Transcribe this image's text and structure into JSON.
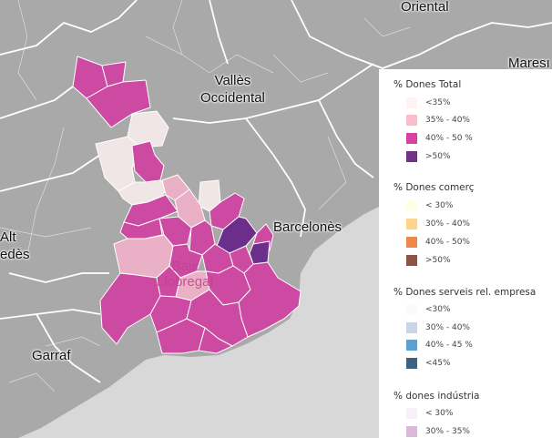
{
  "map": {
    "places": [
      {
        "name": "oriental",
        "lines": [
          "Oriental"
        ]
      },
      {
        "name": "maresme",
        "lines": [
          "Maresı"
        ]
      },
      {
        "name": "valles-occidental",
        "lines": [
          "Vallès",
          "Occidental"
        ]
      },
      {
        "name": "barcelones",
        "lines": [
          "Barcelonès"
        ]
      },
      {
        "name": "alt-penedes",
        "lines": [
          "Alt",
          "edès"
        ]
      },
      {
        "name": "garraf",
        "lines": [
          "Garraf"
        ]
      },
      {
        "name": "baix-llobregat",
        "lines": [
          "Baix",
          "Llobregat"
        ]
      }
    ],
    "colors": {
      "land": "#a9a9a9",
      "sea": "#d8d8d8",
      "lt35": "#f0e6e6",
      "r35_40": "#eab1c6",
      "r40_50": "#cc4aa1",
      "gt50": "#6b2e8a"
    }
  },
  "legend": {
    "sections": [
      {
        "title": "% Dones Total",
        "items": [
          {
            "label": "<35%",
            "color": "#fff3f3"
          },
          {
            "label": "35% - 40%",
            "color": "#fbbccb"
          },
          {
            "label": "40% - 50 %",
            "color": "#d542a6"
          },
          {
            "label": ">50%",
            "color": "#6e3286"
          }
        ]
      },
      {
        "title": "% Dones comerç",
        "items": [
          {
            "label": "< 30%",
            "color": "#ffffe3"
          },
          {
            "label": "30% - 40%",
            "color": "#fdd58a"
          },
          {
            "label": "40% - 50%",
            "color": "#ec8849"
          },
          {
            "label": ">50%",
            "color": "#8c5445"
          }
        ]
      },
      {
        "title": "% Dones serveis rel. empresa",
        "items": [
          {
            "label": "<30%",
            "color": "#fdf8fb"
          },
          {
            "label": "30% - 40%",
            "color": "#c9d5e8"
          },
          {
            "label": "40% - 45 %",
            "color": "#5aa2d1"
          },
          {
            "label": "<45%",
            "color": "#3c6282"
          }
        ]
      },
      {
        "title": "% dones indústria",
        "items": [
          {
            "label": "< 30%",
            "color": "#f8f0f8"
          },
          {
            "label": "30% - 35%",
            "color": "#dcb8dc"
          }
        ]
      }
    ]
  }
}
